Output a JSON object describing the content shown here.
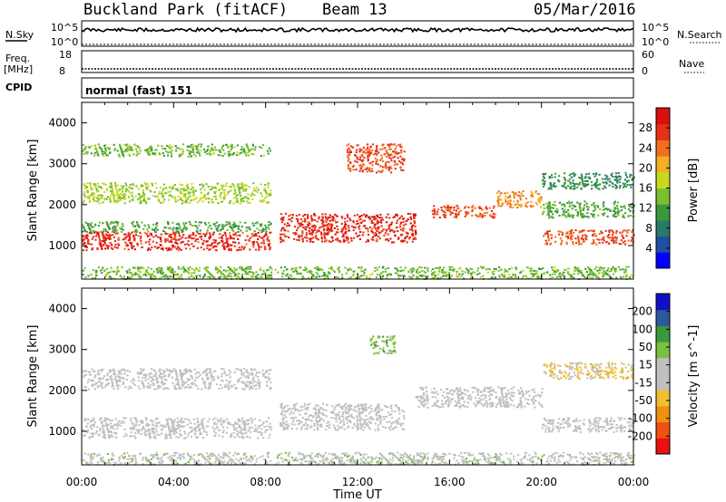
{
  "header": {
    "station": "Buckland Park (fitACF)",
    "beam": "Beam 13",
    "date": "05/Mar/2016"
  },
  "strips": {
    "nsky": {
      "label": "N.Sky",
      "top": "10^5",
      "bottom": "10^0"
    },
    "nsearch": {
      "label": "N.Search",
      "top": "10^5",
      "bottom": "10^0"
    },
    "freq": {
      "label_top": "Freq.",
      "label_unit": "[MHz]",
      "top": "18",
      "bottom": "8"
    },
    "nave": {
      "label": "Nave",
      "top": "60",
      "bottom": "0"
    },
    "cpid": {
      "label": "CPID",
      "value": "normal (fast) 151"
    }
  },
  "chart_data": [
    {
      "type": "heatmap",
      "title": "",
      "xlabel": "Time UT",
      "ylabel": "Slant Range [km]",
      "colorbar_label": "Power [dB]",
      "colorbar_ticks": [
        "4",
        "8",
        "12",
        "16",
        "20",
        "24",
        "28"
      ],
      "color_range": [
        0,
        32
      ],
      "colors": [
        "#0000ff",
        "#1f4fa0",
        "#2a7a6a",
        "#3a9a3a",
        "#7abf30",
        "#c8d820",
        "#f0b020",
        "#f07020",
        "#e83018",
        "#d81010"
      ],
      "x_ticks": [
        "00:00",
        "04:00",
        "08:00",
        "12:00",
        "16:00",
        "20:00",
        "00:00"
      ],
      "y_ticks": [
        "1000",
        "2000",
        "3000",
        "4000"
      ],
      "ylim": [
        180,
        4500
      ],
      "bands": [
        {
          "t0": 0,
          "t1": 8.2,
          "r0": 900,
          "r1": 1350,
          "value": 28
        },
        {
          "t0": 0,
          "t1": 8.2,
          "r0": 1350,
          "r1": 1600,
          "value": 12
        },
        {
          "t0": 0,
          "t1": 8.2,
          "r0": 2050,
          "r1": 2550,
          "value": 16
        },
        {
          "t0": 0,
          "t1": 8.2,
          "r0": 3200,
          "r1": 3500,
          "value": 14
        },
        {
          "t0": 0,
          "t1": 24,
          "r0": 200,
          "r1": 500,
          "value": 14
        },
        {
          "t0": 8.6,
          "t1": 14.5,
          "r0": 1100,
          "r1": 1800,
          "value": 28
        },
        {
          "t0": 11.5,
          "t1": 14.0,
          "r0": 2800,
          "r1": 3500,
          "value": 26
        },
        {
          "t0": 15.2,
          "t1": 18.0,
          "r0": 1700,
          "r1": 2000,
          "value": 26
        },
        {
          "t0": 18.0,
          "t1": 20.0,
          "r0": 1950,
          "r1": 2350,
          "value": 22
        },
        {
          "t0": 20.0,
          "t1": 24.0,
          "r0": 1050,
          "r1": 1400,
          "value": 26
        },
        {
          "t0": 20.0,
          "t1": 24.0,
          "r0": 1700,
          "r1": 2100,
          "value": 12
        },
        {
          "t0": 20.0,
          "t1": 24.0,
          "r0": 2400,
          "r1": 2800,
          "value": 10
        }
      ]
    },
    {
      "type": "heatmap",
      "title": "",
      "xlabel": "Time UT",
      "ylabel": "Slant Range [km]",
      "colorbar_label": "Velocity [m s^-1]",
      "colorbar_ticks": [
        "200",
        "100",
        "50",
        "15",
        "-15",
        "-50",
        "-100",
        "-200"
      ],
      "color_range": [
        -250,
        250
      ],
      "colors": [
        "#e81010",
        "#f05010",
        "#f09010",
        "#f0c030",
        "#c0c0c0",
        "#c0c0c0",
        "#7ac040",
        "#3a9a3a",
        "#2a5a9a",
        "#1010c8"
      ],
      "x_ticks": [
        "00:00",
        "04:00",
        "08:00",
        "12:00",
        "16:00",
        "20:00",
        "00:00"
      ],
      "y_ticks": [
        "1000",
        "2000",
        "3000",
        "4000"
      ],
      "ylim": [
        180,
        4500
      ],
      "bands": [
        {
          "t0": 0,
          "t1": 8.2,
          "r0": 850,
          "r1": 1350,
          "value": 0
        },
        {
          "t0": 0,
          "t1": 8.2,
          "r0": 2050,
          "r1": 2550,
          "value": 0
        },
        {
          "t0": 0,
          "t1": 24,
          "r0": 200,
          "r1": 500,
          "value": 20
        },
        {
          "t0": 8.6,
          "t1": 14.0,
          "r0": 1050,
          "r1": 1700,
          "value": 0
        },
        {
          "t0": 12.5,
          "t1": 13.6,
          "r0": 2900,
          "r1": 3350,
          "value": 80
        },
        {
          "t0": 14.5,
          "t1": 20.0,
          "r0": 1600,
          "r1": 2100,
          "value": 0
        },
        {
          "t0": 20.0,
          "t1": 24.0,
          "r0": 1000,
          "r1": 1350,
          "value": 0
        },
        {
          "t0": 20.0,
          "t1": 24.0,
          "r0": 2300,
          "r1": 2700,
          "value": -60
        }
      ]
    }
  ]
}
